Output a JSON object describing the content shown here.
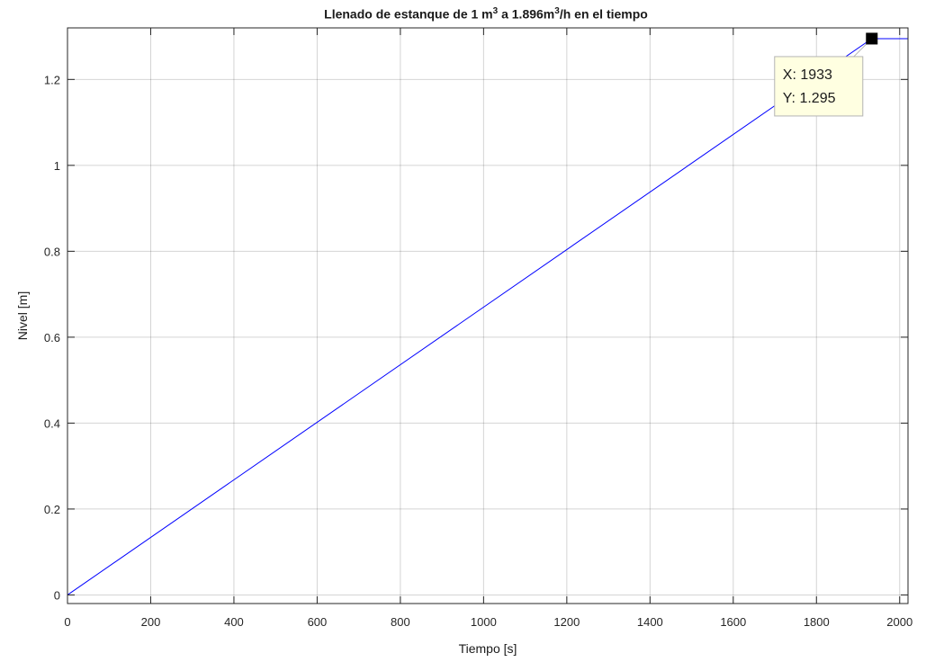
{
  "chart_data": {
    "type": "line",
    "title": {
      "part1": "Llenado de estanque de 1 m",
      "sup1": "3",
      "part2": " a 1.896m",
      "sup2": "3",
      "part3": "/h  en el tiempo"
    },
    "xlabel": "Tiempo [s]",
    "ylabel": "Nivel [m]",
    "xlim": [
      0,
      2020
    ],
    "ylim": [
      -0.02,
      1.32
    ],
    "grid": true,
    "xticks": [
      0,
      200,
      400,
      600,
      800,
      1000,
      1200,
      1400,
      1600,
      1800,
      2000
    ],
    "yticks": [
      0,
      0.2,
      0.4,
      0.6,
      0.8,
      1,
      1.2
    ],
    "series": [
      {
        "color": "#0000ff",
        "x": [
          0,
          1933,
          2020
        ],
        "y": [
          0,
          1.295,
          1.295
        ]
      }
    ],
    "datatip": {
      "x": 1933,
      "y": 1.295,
      "x_text": "X: 1933",
      "y_text": "Y: 1.295"
    }
  }
}
